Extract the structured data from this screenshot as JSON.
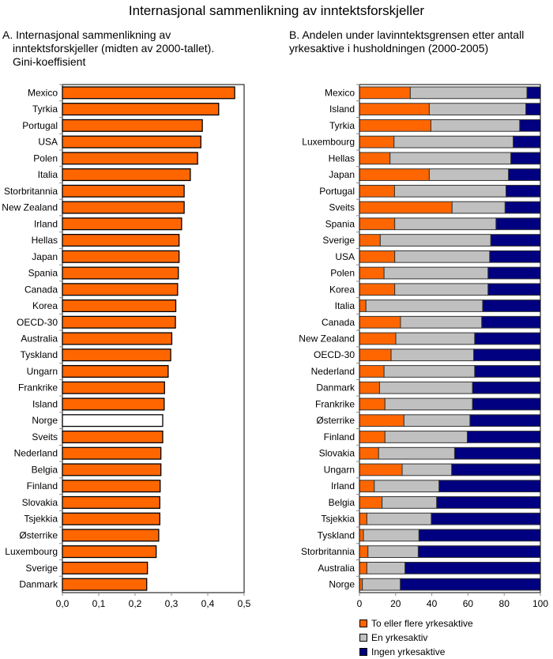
{
  "title": "Internasjonal sammenlikning av inntektsforskjeller",
  "colors": {
    "orange": "#FF6600",
    "gray": "#C0C0C0",
    "navy": "#000080",
    "highlight": "#FFFFFF"
  },
  "chart_data": [
    {
      "type": "bar",
      "orientation": "horizontal",
      "title_lines": [
        "A. Internasjonal sammenlikning av",
        "inntektsforskjeller (midten av 2000-tallet).",
        "Gini-koeffisient"
      ],
      "xlabel": "",
      "ylabel": "",
      "xlim": [
        0,
        0.5
      ],
      "xticks": [
        "0,0",
        "0,1",
        "0,2",
        "0,3",
        "0,4",
        "0,5"
      ],
      "grid": false,
      "highlighted_category": "Norge",
      "categories": [
        "Mexico",
        "Tyrkia",
        "Portugal",
        "USA",
        "Polen",
        "Italia",
        "Storbritannia",
        "New Zealand",
        "Irland",
        "Hellas",
        "Japan",
        "Spania",
        "Canada",
        "Korea",
        "OECD-30",
        "Australia",
        "Tyskland",
        "Ungarn",
        "Frankrike",
        "Island",
        "Norge",
        "Sveits",
        "Nederland",
        "Belgia",
        "Finland",
        "Slovakia",
        "Tsjekkia",
        "Østerrike",
        "Luxembourg",
        "Sverige",
        "Danmark"
      ],
      "values": [
        0.474,
        0.43,
        0.385,
        0.381,
        0.372,
        0.352,
        0.335,
        0.335,
        0.328,
        0.321,
        0.321,
        0.319,
        0.317,
        0.312,
        0.311,
        0.301,
        0.298,
        0.291,
        0.281,
        0.28,
        0.276,
        0.276,
        0.271,
        0.271,
        0.269,
        0.268,
        0.268,
        0.265,
        0.258,
        0.234,
        0.232
      ]
    },
    {
      "type": "bar",
      "orientation": "horizontal",
      "stacked": true,
      "title_lines": [
        "B. Andelen under lavinntektsgrensen etter antall",
        "yrkesaktive i husholdningen (2000-2005)"
      ],
      "xlabel": "",
      "ylabel": "",
      "xlim": [
        0,
        100
      ],
      "xticks": [
        "0",
        "20",
        "40",
        "60",
        "80",
        "100"
      ],
      "grid": false,
      "legend_position": "bottom",
      "categories": [
        "Mexico",
        "Island",
        "Tyrkia",
        "Luxembourg",
        "Hellas",
        "Japan",
        "Portugal",
        "Sveits",
        "Spania",
        "Sverige",
        "USA",
        "Polen",
        "Korea",
        "Italia",
        "Canada",
        "New Zealand",
        "OECD-30",
        "Nederland",
        "Danmark",
        "Frankrike",
        "Østerrike",
        "Finland",
        "Slovakia",
        "Ungarn",
        "Irland",
        "Belgia",
        "Tsjekkia",
        "Tyskland",
        "Storbritannia",
        "Australia",
        "Norge"
      ],
      "series": [
        {
          "name": "To eller flere yrkesaktive",
          "color": "#FF6600",
          "values": [
            28.1,
            38.6,
            39.5,
            19.1,
            16.9,
            38.6,
            19.4,
            51.2,
            19.5,
            11.5,
            19.5,
            13.6,
            19.5,
            3.6,
            22.7,
            20.1,
            17.5,
            13.6,
            11.1,
            14.1,
            24.6,
            14.1,
            10.6,
            23.6,
            8.2,
            12.5,
            4.1,
            2.2,
            4.7,
            4.1,
            1.6
          ]
        },
        {
          "name": "En yrkesaktiv",
          "color": "#C0C0C0",
          "values": [
            64.5,
            53.4,
            49.1,
            65.9,
            66.8,
            43.8,
            61.6,
            29.3,
            56.0,
            61.1,
            52.5,
            57.5,
            51.6,
            64.5,
            44.9,
            43.6,
            45.6,
            50.1,
            51.4,
            48.4,
            36.5,
            45.5,
            42.0,
            27.4,
            35.8,
            30.2,
            35.6,
            30.7,
            27.8,
            21.1,
            21.0
          ]
        },
        {
          "name": "Ingen yrkesaktive",
          "color": "#000080",
          "values": [
            7.4,
            8.0,
            11.4,
            15.0,
            16.3,
            17.6,
            19.0,
            19.5,
            24.5,
            27.4,
            28.0,
            28.9,
            28.9,
            31.9,
            32.4,
            36.3,
            36.9,
            36.3,
            37.5,
            37.5,
            38.9,
            40.4,
            47.4,
            49.0,
            56.0,
            57.3,
            60.3,
            67.1,
            67.5,
            74.8,
            77.4
          ]
        }
      ]
    }
  ]
}
